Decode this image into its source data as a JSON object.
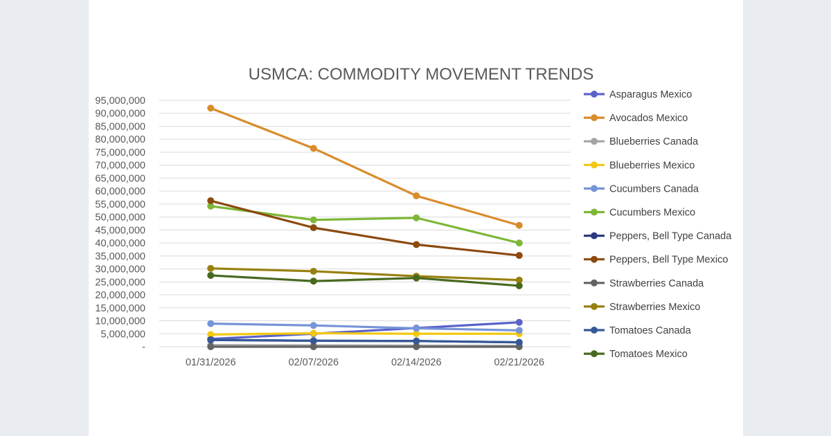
{
  "chart_data": {
    "type": "line",
    "title": "USMCA: COMMODITY MOVEMENT TRENDS",
    "xlabel": "",
    "ylabel": "",
    "ylim": [
      0,
      95000000
    ],
    "ytick_step": 5000000,
    "ytick_labels": [
      "-",
      "5,000,000",
      "10,000,000",
      "15,000,000",
      "20,000,000",
      "25,000,000",
      "30,000,000",
      "35,000,000",
      "40,000,000",
      "45,000,000",
      "50,000,000",
      "55,000,000",
      "60,000,000",
      "65,000,000",
      "70,000,000",
      "75,000,000",
      "80,000,000",
      "85,000,000",
      "90,000,000",
      "95,000,000"
    ],
    "categories": [
      "01/31/2026",
      "02/07/2026",
      "02/14/2026",
      "02/21/2026"
    ],
    "grid": true,
    "legend_position": "right",
    "series": [
      {
        "name": "Asparagus Mexico",
        "color": "#5b63c8",
        "values": [
          3000000,
          5000000,
          7200000,
          9400000
        ]
      },
      {
        "name": "Avocados Mexico",
        "color": "#d98c2b",
        "values": [
          92000000,
          76500000,
          58200000,
          46800000
        ]
      },
      {
        "name": "Blueberries Canada",
        "color": "#a5a5a5",
        "values": [
          600000,
          500000,
          400000,
          300000
        ]
      },
      {
        "name": "Blueberries Mexico",
        "color": "#f2c811",
        "values": [
          4700000,
          5200000,
          5000000,
          5000000
        ]
      },
      {
        "name": "Cucumbers Canada",
        "color": "#7694d8",
        "values": [
          8900000,
          8200000,
          7100000,
          6300000
        ]
      },
      {
        "name": "Cucumbers Mexico",
        "color": "#7db737",
        "values": [
          54200000,
          48900000,
          49700000,
          40000000
        ]
      },
      {
        "name": "Peppers, Bell Type Canada",
        "color": "#2c3a80",
        "values": [
          2600000,
          2300000,
          2200000,
          1700000
        ]
      },
      {
        "name": "Peppers, Bell Type Mexico",
        "color": "#8b4a0e",
        "values": [
          56300000,
          45900000,
          39400000,
          35200000
        ]
      },
      {
        "name": "Strawberries Canada",
        "color": "#636363",
        "values": [
          0,
          0,
          0,
          0
        ]
      },
      {
        "name": "Strawberries Mexico",
        "color": "#97800e",
        "values": [
          30200000,
          29100000,
          27200000,
          25700000
        ]
      },
      {
        "name": "Tomatoes Canada",
        "color": "#375896",
        "values": [
          2700000,
          2300000,
          2200000,
          1700000
        ]
      },
      {
        "name": "Tomatoes Mexico",
        "color": "#47691e",
        "values": [
          27500000,
          25300000,
          26500000,
          23500000
        ]
      }
    ]
  }
}
